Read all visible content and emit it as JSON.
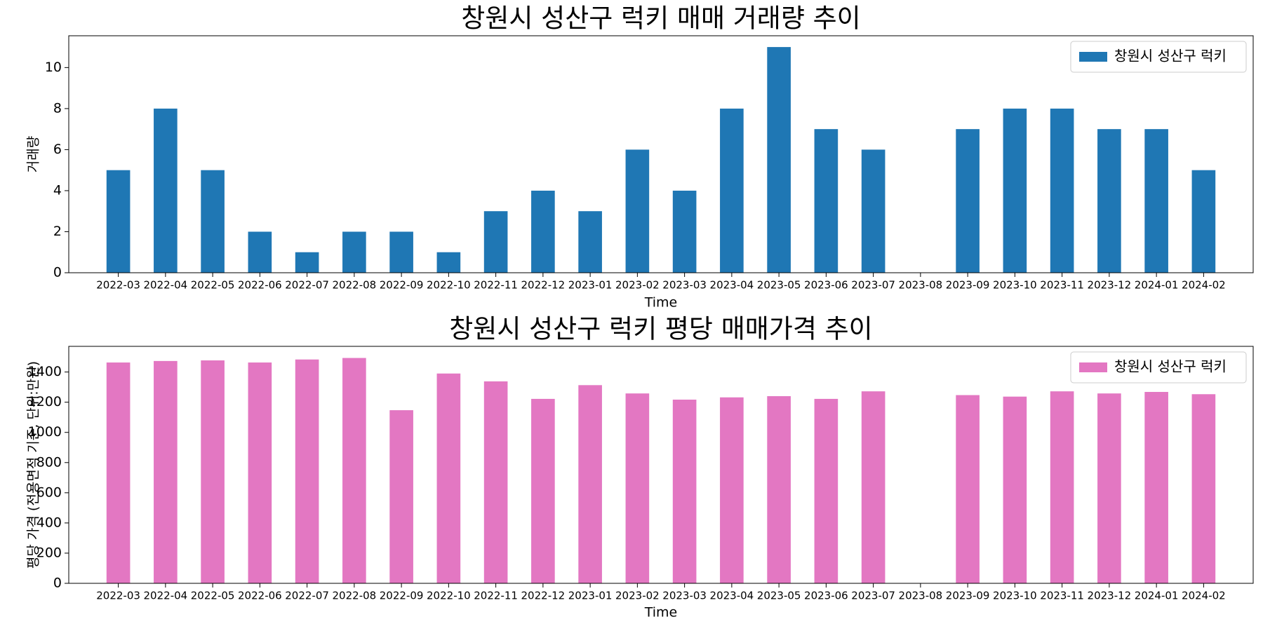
{
  "chart_data": [
    {
      "type": "bar",
      "title": "창원시 성산구 럭키 매매 거래량 추이",
      "xlabel": "Time",
      "ylabel": "거래량",
      "ylim": [
        0,
        11.55
      ],
      "yticks": [
        0,
        2,
        4,
        6,
        8,
        10
      ],
      "grid": false,
      "legend_position": "top-right",
      "color": "#1f77b4",
      "categories": [
        "2022-03",
        "2022-04",
        "2022-05",
        "2022-06",
        "2022-07",
        "2022-08",
        "2022-09",
        "2022-10",
        "2022-11",
        "2022-12",
        "2023-01",
        "2023-02",
        "2023-03",
        "2023-04",
        "2023-05",
        "2023-06",
        "2023-07",
        "2023-08",
        "2023-09",
        "2023-10",
        "2023-11",
        "2023-12",
        "2024-01",
        "2024-02"
      ],
      "series": [
        {
          "name": "창원시 성산구 럭키",
          "values": [
            5,
            8,
            5,
            2,
            1,
            2,
            2,
            1,
            3,
            4,
            3,
            6,
            4,
            8,
            11,
            7,
            6,
            0,
            7,
            8,
            8,
            7,
            7,
            5
          ]
        }
      ]
    },
    {
      "type": "bar",
      "title": "창원시 성산구 럭키 평당 매매가격 추이",
      "xlabel": "Time",
      "ylabel": "평당 가격 (전용면적 기준, 단위:만원)",
      "ylim": [
        0,
        1570
      ],
      "yticks": [
        0,
        200,
        400,
        600,
        800,
        1000,
        1200,
        1400
      ],
      "grid": false,
      "legend_position": "top-right",
      "color": "#e377c2",
      "categories": [
        "2022-03",
        "2022-04",
        "2022-05",
        "2022-06",
        "2022-07",
        "2022-08",
        "2022-09",
        "2022-10",
        "2022-11",
        "2022-12",
        "2023-01",
        "2023-02",
        "2023-03",
        "2023-04",
        "2023-05",
        "2023-06",
        "2023-07",
        "2023-08",
        "2023-09",
        "2023-10",
        "2023-11",
        "2023-12",
        "2024-01",
        "2024-02"
      ],
      "series": [
        {
          "name": "창원시 성산구 럭키",
          "values": [
            1463,
            1473,
            1477,
            1463,
            1483,
            1493,
            1147,
            1390,
            1338,
            1222,
            1313,
            1258,
            1217,
            1232,
            1240,
            1222,
            1272,
            null,
            1247,
            1237,
            1272,
            1258,
            1268,
            1253
          ]
        }
      ]
    }
  ]
}
